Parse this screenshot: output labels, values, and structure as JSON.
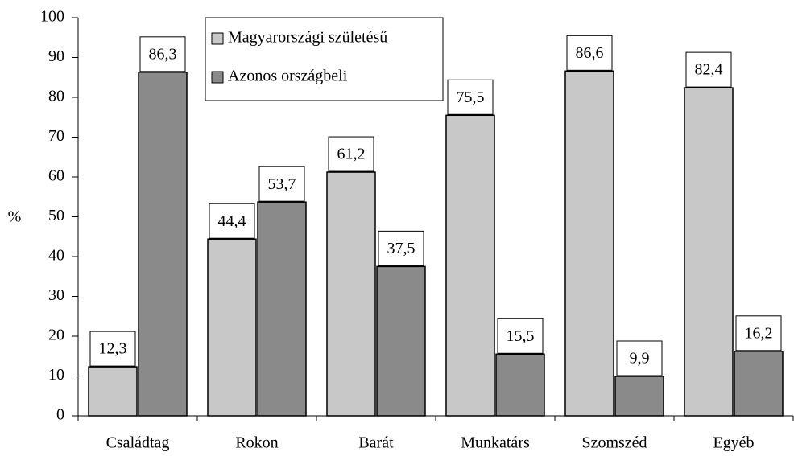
{
  "chart_data": {
    "type": "bar",
    "categories": [
      "Családtag",
      "Rokon",
      "Barát",
      "Munkatárs",
      "Szomszéd",
      "Egyéb"
    ],
    "series": [
      {
        "name": "Magyarországi születésű",
        "color": "#c8c8c8",
        "values": [
          12.3,
          44.4,
          61.2,
          75.5,
          86.6,
          82.4
        ],
        "value_labels": [
          "12,3",
          "44,4",
          "61,2",
          "75,5",
          "86,6",
          "82,4"
        ]
      },
      {
        "name": "Azonos országbeli",
        "color": "#8a8a8a",
        "values": [
          86.3,
          53.7,
          37.5,
          15.5,
          9.9,
          16.2
        ],
        "value_labels": [
          "86,3",
          "53,7",
          "37,5",
          "15,5",
          "9,9",
          "16,2"
        ]
      }
    ],
    "ylabel": "%",
    "ylim": [
      0,
      100
    ],
    "yticks": [
      0,
      10,
      20,
      30,
      40,
      50,
      60,
      70,
      80,
      90,
      100
    ],
    "legend": "top-left"
  }
}
